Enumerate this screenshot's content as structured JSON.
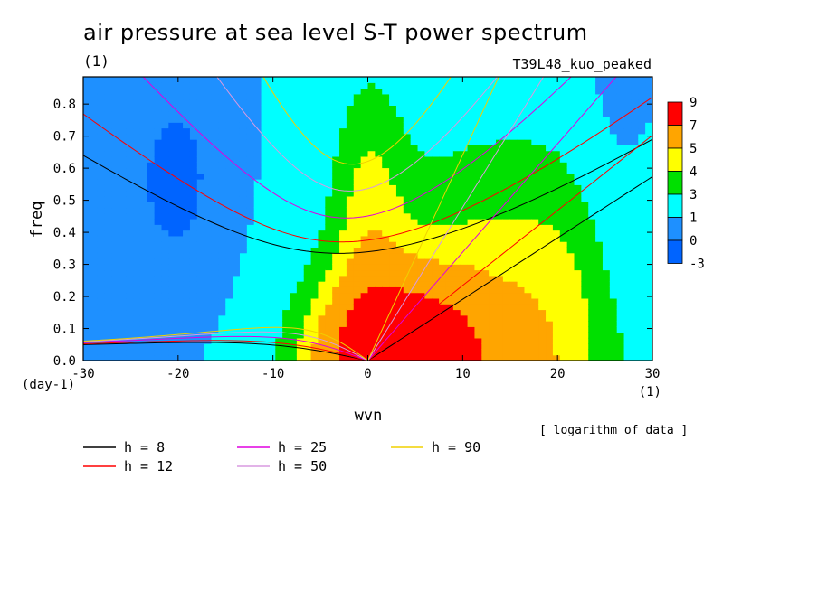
{
  "chart_data": {
    "type": "heatmap",
    "title": "air pressure at sea level S-T power spectrum",
    "title_unit": "(1)",
    "run_label": "T39L48_kuo_peaked",
    "xlabel": "wvn",
    "xunit": "(1)",
    "ylabel": "freq",
    "yunit": "(day-1)",
    "xlim": [
      -30,
      30
    ],
    "ylim": [
      0,
      0.885
    ],
    "xticks": [
      -30,
      -20,
      -10,
      0,
      10,
      20,
      30
    ],
    "yticks": [
      0.0,
      0.1,
      0.2,
      0.3,
      0.4,
      0.5,
      0.6,
      0.7,
      0.8
    ],
    "note": "[ logarithm of data ]",
    "colorbar": {
      "levels": [
        "9",
        "7",
        "5",
        "4",
        "3",
        "1",
        "0",
        "-3"
      ],
      "colors": [
        "#ff0000",
        "#ffa500",
        "#ffff00",
        "#00e000",
        "#00ffff",
        "#1e90ff",
        "#0064ff"
      ]
    },
    "dispersion_curves": [
      {
        "name": "h =  8",
        "color": "#000000"
      },
      {
        "name": "h = 12",
        "color": "#ff0000"
      },
      {
        "name": "h = 25",
        "color": "#e000e0"
      },
      {
        "name": "h = 50",
        "color": "#d89ae0"
      },
      {
        "name": "h = 90",
        "color": "#f0d000"
      }
    ],
    "equivalent_depths": [
      8,
      12,
      25,
      50,
      90
    ]
  }
}
